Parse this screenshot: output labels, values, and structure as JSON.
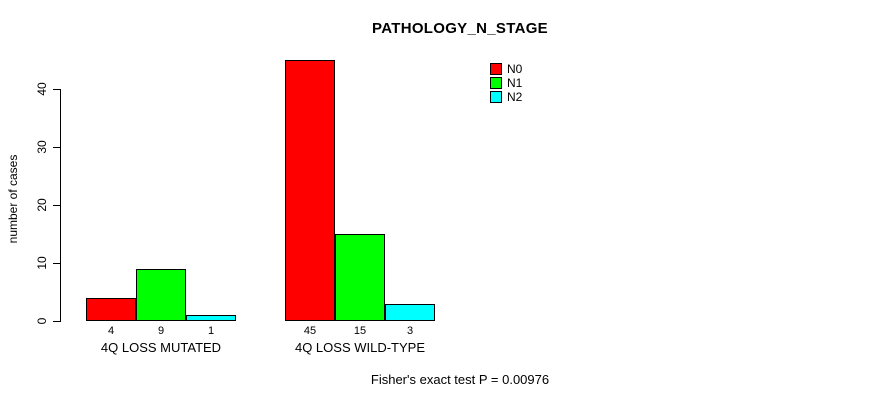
{
  "chart_data": {
    "type": "bar",
    "title": "PATHOLOGY_N_STAGE",
    "ylabel": "number of cases",
    "xlabel": "",
    "ylim": [
      0,
      40
    ],
    "yticks": [
      0,
      10,
      20,
      30,
      40
    ],
    "grid": false,
    "legend_position": "top-right",
    "categories": [
      "4Q LOSS MUTATED",
      "4Q LOSS WILD-TYPE"
    ],
    "series": [
      {
        "name": "N0",
        "color": "#ff0000",
        "values": [
          4,
          45
        ]
      },
      {
        "name": "N1",
        "color": "#00ff00",
        "values": [
          9,
          15
        ]
      },
      {
        "name": "N2",
        "color": "#00ffff",
        "values": [
          1,
          3
        ]
      }
    ],
    "bar_value_labels": [
      [
        "4",
        "9",
        "1"
      ],
      [
        "45",
        "15",
        "3"
      ]
    ],
    "footer": "Fisher's exact test P = 0.00976"
  }
}
